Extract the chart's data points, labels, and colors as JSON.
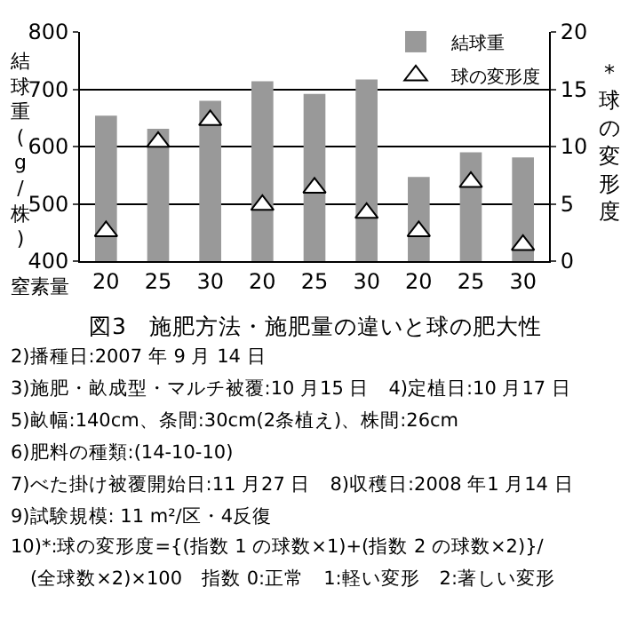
{
  "chart_data": {
    "type": "bar",
    "title": "図3　施肥方法・施肥量の違いと球の肥大性",
    "xlabel": "窒素量",
    "ylabel": "結球重(g/株)",
    "y2label": "*球の変形度",
    "categories": [
      "20",
      "25",
      "30",
      "20",
      "25",
      "30",
      "20",
      "25",
      "30"
    ],
    "series": [
      {
        "name": "結球重",
        "type": "bar",
        "color": "#999999",
        "values": [
          654,
          631,
          680,
          714,
          692,
          717,
          547,
          590,
          581
        ]
      },
      {
        "name": "球の変形度",
        "type": "scatter",
        "axis": "y2",
        "color": "#ffffff",
        "values": [
          2.6,
          10.4,
          12.3,
          4.9,
          6.4,
          4.2,
          2.6,
          6.9,
          1.4
        ]
      }
    ],
    "marker": "triangle",
    "ylim": [
      400,
      800
    ],
    "yticks": [
      400,
      500,
      600,
      700,
      800
    ],
    "y2lim": [
      0,
      20
    ],
    "y2ticks": [
      0,
      5,
      10,
      15,
      20
    ],
    "grid": "y",
    "legend": "top right",
    "annotations": [
      "2)播種日:2007 年 9 月 14 日",
      "3)施肥・畝成型・マルチ被覆:10 月15 日　4)定植日:10 月17 日",
      "5)畝幅:140cm、条間:30cm(2条植え)、株間:26cm",
      "6)肥料の種類:(14-10-10)",
      "7)べた掛け被覆開始日:11 月27 日　8)収穫日:2008 年1 月14 日",
      "9)試験規模: 11 m²/区・4反復",
      "10)*:球の変形度={(指数 1 の球数×1)+(指数 2 の球数×2)}/",
      "　(全球数×2)×100　指数 0:正常　1:軽い変形　2:著しい変形"
    ]
  }
}
